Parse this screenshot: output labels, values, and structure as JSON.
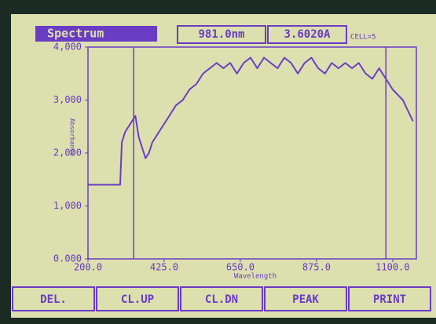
{
  "header": {
    "mode": "Spectrum",
    "wavelength": "981.0nm",
    "reading": "3.6020A",
    "cell": "CELL=5"
  },
  "chart_data": {
    "type": "line",
    "y_label": "Absorbance",
    "x_label": "Wavelength",
    "x": [
      200,
      225,
      250,
      275,
      295,
      300,
      310,
      320,
      330,
      340,
      350,
      360,
      370,
      380,
      390,
      400,
      420,
      440,
      460,
      480,
      500,
      520,
      540,
      560,
      580,
      600,
      620,
      640,
      660,
      680,
      700,
      720,
      740,
      760,
      780,
      800,
      820,
      840,
      860,
      880,
      900,
      920,
      940,
      960,
      980,
      1000,
      1020,
      1040,
      1060,
      1080,
      1100,
      1130,
      1160
    ],
    "series": [
      {
        "name": "Spectrum",
        "color": "#6a3cc4",
        "values": [
          1400,
          1400,
          1400,
          1400,
          1400,
          2200,
          2400,
          2500,
          2600,
          2700,
          2300,
          2100,
          1900,
          2000,
          2200,
          2300,
          2500,
          2700,
          2900,
          3000,
          3200,
          3300,
          3500,
          3600,
          3700,
          3600,
          3700,
          3500,
          3700,
          3800,
          3600,
          3800,
          3700,
          3600,
          3800,
          3700,
          3500,
          3700,
          3800,
          3600,
          3500,
          3700,
          3600,
          3700,
          3600,
          3700,
          3500,
          3400,
          3600,
          3400,
          3200,
          3000,
          2600
        ]
      }
    ],
    "markers": [
      335,
      1080
    ],
    "xlim": [
      200,
      1170
    ],
    "ylim": [
      0,
      4000
    ],
    "xticks": [
      {
        "value": 200,
        "label": "200.0"
      },
      {
        "value": 425,
        "label": "425.0"
      },
      {
        "value": 650,
        "label": "650.0"
      },
      {
        "value": 875,
        "label": "875.0"
      },
      {
        "value": 1100,
        "label": "1100.0"
      }
    ],
    "yticks": [
      {
        "value": 0,
        "label": "0.000"
      },
      {
        "value": 1000,
        "label": "1,000"
      },
      {
        "value": 2000,
        "label": "2,000"
      },
      {
        "value": 3000,
        "label": "3,000"
      },
      {
        "value": 4000,
        "label": "4,000"
      }
    ]
  },
  "buttons": [
    "DEL.",
    "CL.UP",
    "CL.DN",
    "PEAK",
    "PRINT"
  ]
}
